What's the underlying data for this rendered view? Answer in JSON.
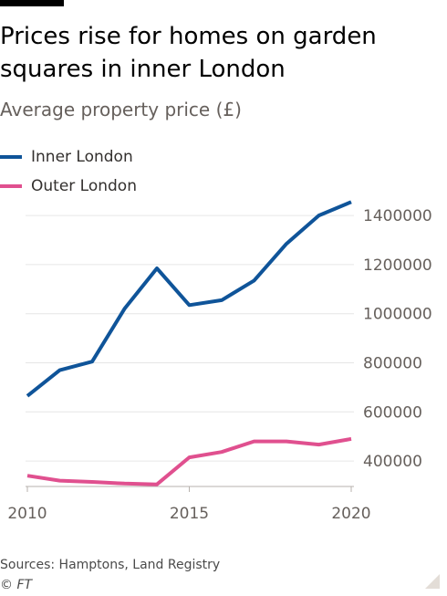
{
  "header": {
    "title": "Prices rise for homes on garden squares in inner London",
    "subtitle": "Average property price (£)"
  },
  "footer": {
    "source": "Sources: Hamptons, Land Registry",
    "copyright": "© FT"
  },
  "colors": {
    "inner": "#0f5499",
    "outer": "#e0508f",
    "grid": "#e6e6e6",
    "text": "#66605c"
  },
  "chart_data": {
    "type": "line",
    "title": "Prices rise for homes on garden squares in inner London",
    "subtitle": "Average property price (£)",
    "xlabel": "",
    "ylabel": "",
    "x": [
      2010,
      2011,
      2012,
      2013,
      2014,
      2015,
      2016,
      2017,
      2018,
      2019,
      2020
    ],
    "xticks": [
      2010,
      2015,
      2020
    ],
    "xtick_labels": [
      "2010",
      "2015",
      "2020"
    ],
    "yticks": [
      400000,
      600000,
      800000,
      1000000,
      1200000,
      1400000
    ],
    "ytick_labels": [
      "400000",
      "600000",
      "800000",
      "1000000",
      "1200000",
      "1400000"
    ],
    "ylim": [
      300000,
      1460000
    ],
    "xlim": [
      2010,
      2020
    ],
    "grid": true,
    "legend": "top-left",
    "series": [
      {
        "name": "Inner London",
        "color": "#0f5499",
        "values": [
          665000,
          770000,
          805000,
          1020000,
          1185000,
          1035000,
          1055000,
          1135000,
          1285000,
          1400000,
          1455000
        ]
      },
      {
        "name": "Outer London",
        "color": "#e0508f",
        "values": [
          340000,
          320000,
          315000,
          308000,
          305000,
          415000,
          437000,
          480000,
          480000,
          467000,
          490000
        ]
      }
    ]
  }
}
